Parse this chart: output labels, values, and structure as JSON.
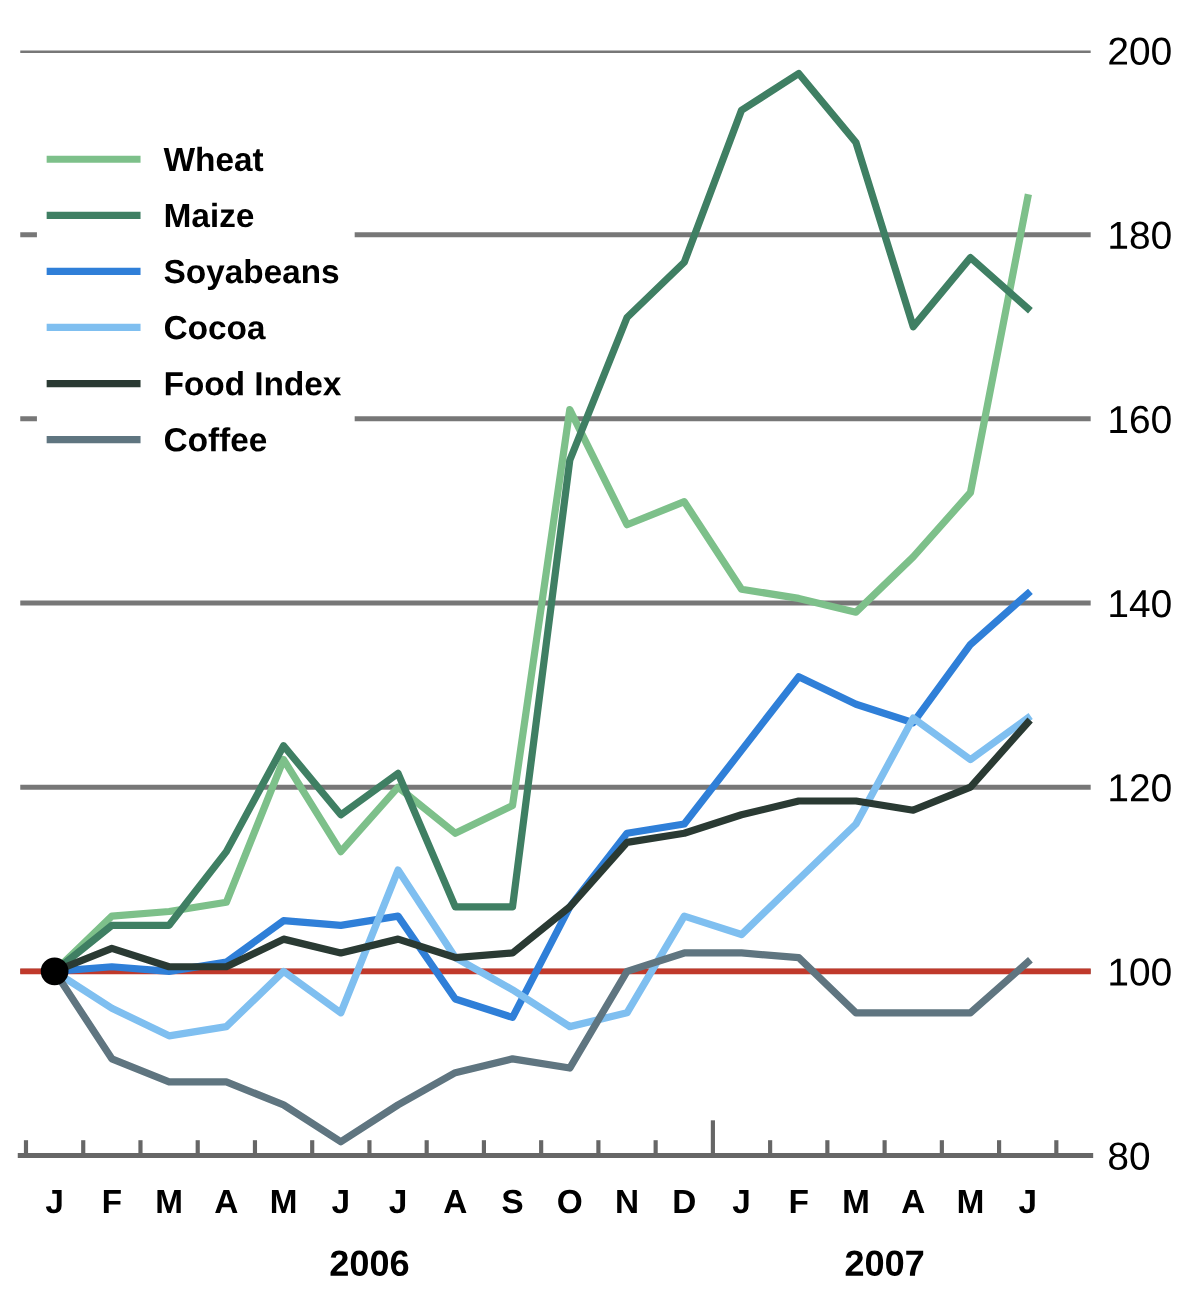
{
  "chart_data": {
    "type": "line",
    "categories": [
      "J",
      "F",
      "M",
      "A",
      "M",
      "J",
      "J",
      "A",
      "S",
      "O",
      "N",
      "D",
      "J",
      "F",
      "M",
      "A",
      "M",
      "J"
    ],
    "series": [
      {
        "name": "Wheat",
        "color": "#7dc08a",
        "values": [
          100,
          106,
          106.5,
          107.5,
          123,
          113,
          120,
          115,
          118,
          161,
          148.5,
          151,
          141.5,
          140.5,
          139,
          145,
          152,
          184
        ]
      },
      {
        "name": "Maize",
        "color": "#3f7f63",
        "values": [
          100,
          105,
          105,
          113,
          124.5,
          117,
          121.5,
          107,
          107,
          155.5,
          171,
          177,
          193.5,
          197.5,
          190,
          170,
          177.5,
          172
        ]
      },
      {
        "name": "Soyabeans",
        "color": "#2f7fd8",
        "values": [
          100,
          100.5,
          100,
          101,
          105.5,
          105,
          106,
          97,
          95,
          107,
          115,
          116,
          124,
          132,
          129,
          127,
          135.5,
          141
        ]
      },
      {
        "name": "Cocoa",
        "color": "#7fbff0",
        "values": [
          100,
          96,
          93,
          94,
          100,
          95.5,
          111,
          101.5,
          98,
          94,
          95.5,
          106,
          104,
          110,
          116,
          127.5,
          123,
          127.5
        ]
      },
      {
        "name": "Food Index",
        "color": "#2a3a33",
        "values": [
          100,
          102.5,
          100.5,
          100.5,
          103.5,
          102,
          103.5,
          101.5,
          102,
          107,
          114,
          115,
          117,
          118.5,
          118.5,
          117.5,
          120,
          127
        ]
      },
      {
        "name": "Coffee",
        "color": "#5f7580",
        "values": [
          100,
          90.5,
          88,
          88,
          85.5,
          81.5,
          85.5,
          89,
          90.5,
          89.5,
          100,
          102,
          102,
          101.5,
          95.5,
          95.5,
          95.5,
          101
        ]
      }
    ],
    "ylim": [
      80,
      200
    ],
    "yticks": [
      80,
      100,
      120,
      140,
      160,
      180,
      200
    ],
    "grid": "y",
    "legend": "top left",
    "ref_lines": [
      {
        "axis": "y",
        "value": 100,
        "color": "#c0392b"
      }
    ],
    "annotations": [
      "2006",
      "2007"
    ]
  }
}
